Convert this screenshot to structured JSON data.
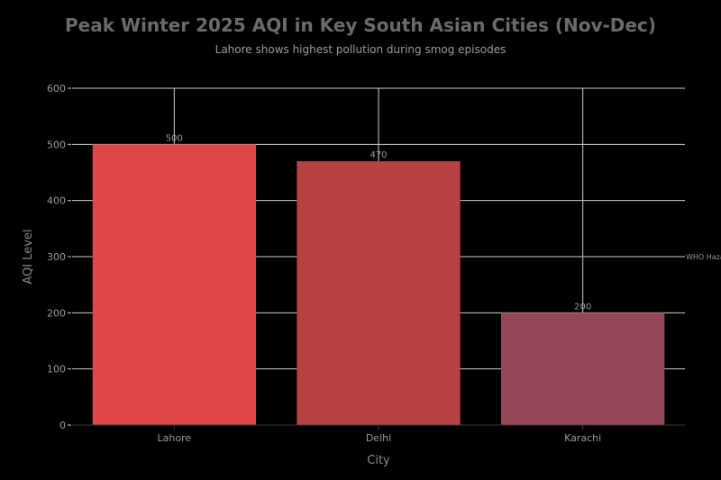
{
  "chart_data": {
    "type": "bar",
    "title": "Peak Winter 2025 AQI in Key South Asian Cities (Nov-Dec)",
    "subtitle": "Lahore shows highest pollution during smog episodes",
    "xlabel": "City",
    "ylabel": "AQI Level",
    "categories": [
      "Lahore",
      "Delhi",
      "Karachi"
    ],
    "values": [
      500,
      470,
      200
    ],
    "data_labels": [
      "500",
      "470",
      "200"
    ],
    "colors": [
      "#de4848",
      "#b84242",
      "#974658"
    ],
    "ylim": [
      0,
      600
    ],
    "yticks": [
      0,
      100,
      200,
      300,
      400,
      500,
      600
    ],
    "ytick_labels": [
      "0",
      "100",
      "200",
      "300",
      "400",
      "500",
      "600"
    ],
    "grid": true,
    "reference_line": {
      "value": 300,
      "label": "WHO Hazardous",
      "style": "dashed",
      "color": "#8a8a8a"
    }
  }
}
